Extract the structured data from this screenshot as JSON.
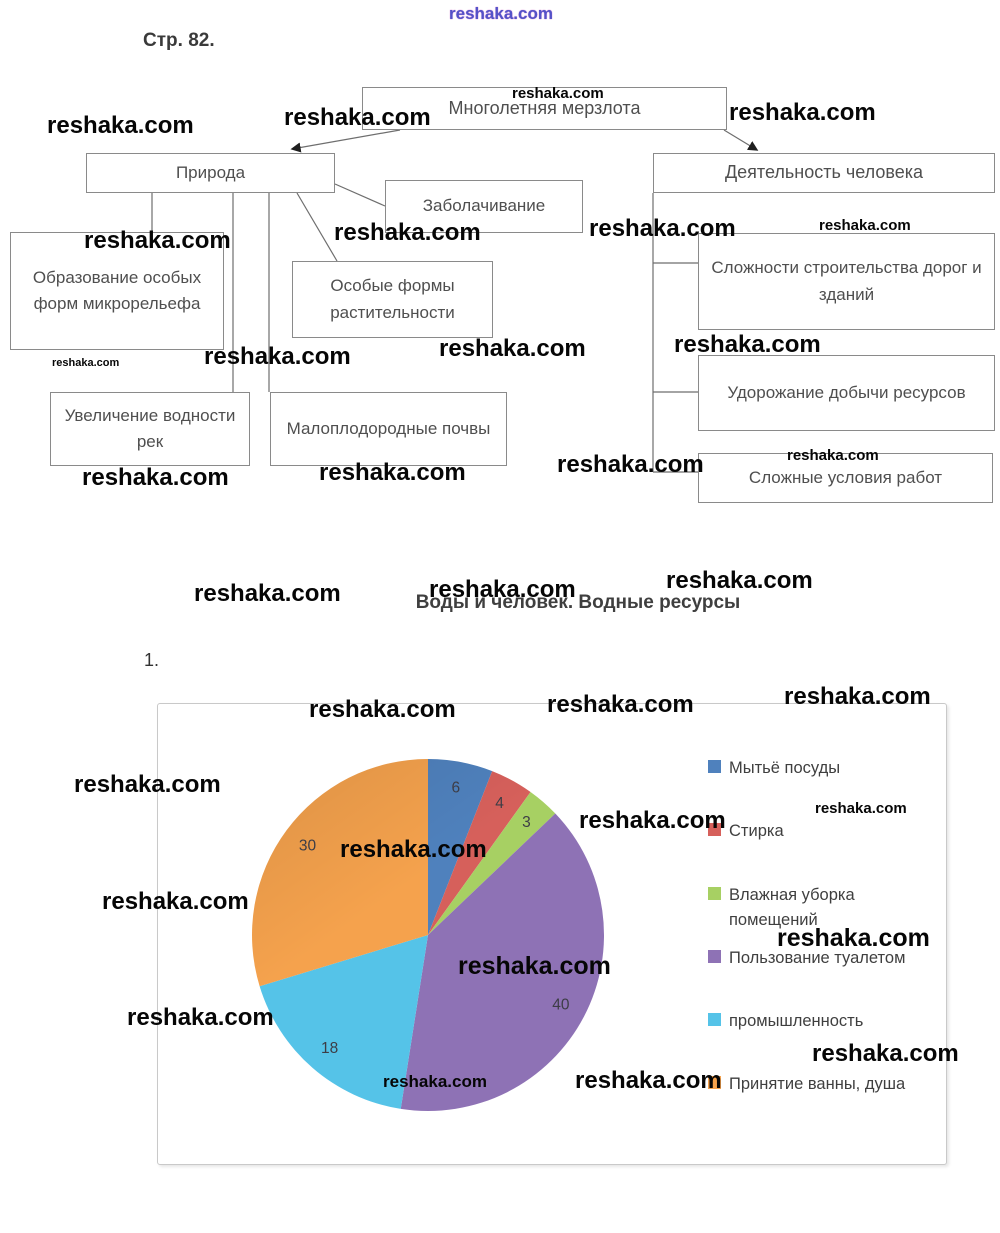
{
  "watermark": {
    "text": "reshaka.com"
  },
  "page": {
    "page_label": "Стр. 82.",
    "item_number": "1.",
    "section_title": "Воды и человек. Водные ресурсы"
  },
  "diagram": {
    "nodes": [
      {
        "id": "permafrost",
        "label": "Многолетняя мерзлота"
      },
      {
        "id": "nature",
        "label": "Природа"
      },
      {
        "id": "human-activity",
        "label": "Деятельность человека"
      },
      {
        "id": "swamping",
        "label": "Заболачивание"
      },
      {
        "id": "microrelief",
        "label": "Образование особых форм микрорельефа"
      },
      {
        "id": "vegetation",
        "label": "Особые формы растительности"
      },
      {
        "id": "river-flow",
        "label": "Увеличение водности рек"
      },
      {
        "id": "poor-soils",
        "label": "Малоплодородные почвы"
      },
      {
        "id": "construction",
        "label": "Сложности строительства дорог и зданий"
      },
      {
        "id": "mining-cost",
        "label": "Удорожание добычи ресурсов"
      },
      {
        "id": "work-conditions",
        "label": "Сложные условия работ"
      }
    ]
  },
  "chart_data": {
    "type": "pie",
    "title": "Воды и человек. Водные ресурсы",
    "legend_position": "right",
    "slices": [
      {
        "label": "Мытьё посуды",
        "value": 6,
        "color": "#4f81bd"
      },
      {
        "label": "Стирка",
        "value": 4,
        "color": "#d6605b"
      },
      {
        "label": "Влажная уборка помещений",
        "value": 3,
        "color": "#a7d063"
      },
      {
        "label": "Пользование туалетом",
        "value": 40,
        "color": "#8e72b5"
      },
      {
        "label": "промышленность",
        "value": 18,
        "color": "#55c3e8"
      },
      {
        "label": "Принятие ванны, душа",
        "value": 30,
        "color": "#f5a24d"
      }
    ]
  }
}
